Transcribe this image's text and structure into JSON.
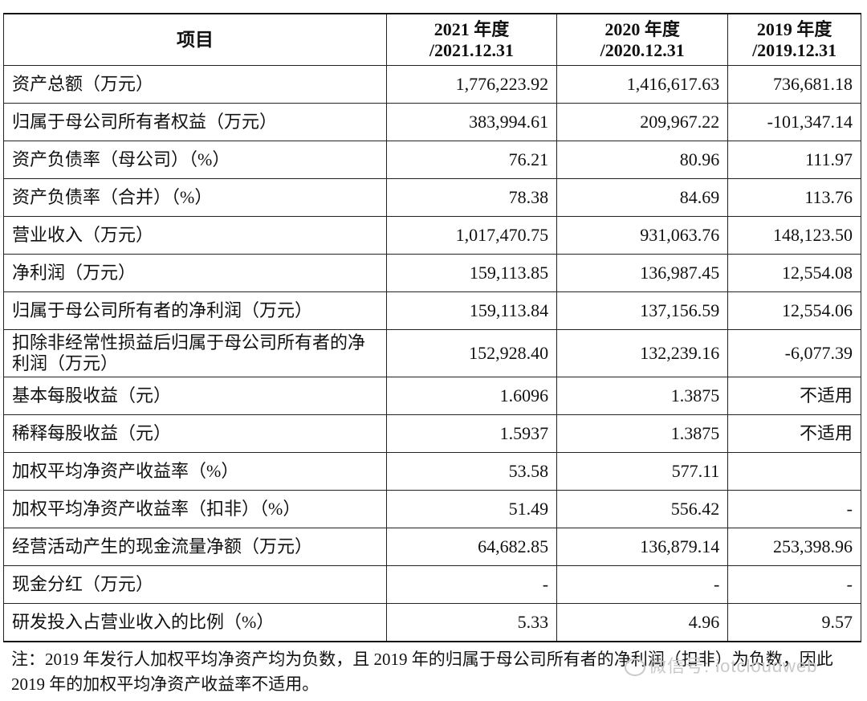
{
  "header": {
    "item": "项目",
    "col2021_year": "2021 年度",
    "col2021_date": "/2021.12.31",
    "col2020_year": "2020 年度",
    "col2020_date": "/2020.12.31",
    "col2019_year": "2019 年度",
    "col2019_date": "/2019.12.31"
  },
  "rows": [
    {
      "label": "资产总额（万元）",
      "v2021": "1,776,223.92",
      "v2020": "1,416,617.63",
      "v2019": "736,681.18"
    },
    {
      "label": "归属于母公司所有者权益（万元）",
      "v2021": "383,994.61",
      "v2020": "209,967.22",
      "v2019": "-101,347.14"
    },
    {
      "label": "资产负债率（母公司）（%）",
      "v2021": "76.21",
      "v2020": "80.96",
      "v2019": "111.97"
    },
    {
      "label": "资产负债率（合并）（%）",
      "v2021": "78.38",
      "v2020": "84.69",
      "v2019": "113.76"
    },
    {
      "label": "营业收入（万元）",
      "v2021": "1,017,470.75",
      "v2020": "931,063.76",
      "v2019": "148,123.50"
    },
    {
      "label": "净利润（万元）",
      "v2021": "159,113.85",
      "v2020": "136,987.45",
      "v2019": "12,554.08"
    },
    {
      "label": "归属于母公司所有者的净利润（万元）",
      "v2021": "159,113.84",
      "v2020": "137,156.59",
      "v2019": "12,554.06"
    },
    {
      "label": "扣除非经常性损益后归属于母公司所有者的净利润（万元）",
      "v2021": "152,928.40",
      "v2020": "132,239.16",
      "v2019": "-6,077.39"
    },
    {
      "label": "基本每股收益（元）",
      "v2021": "1.6096",
      "v2020": "1.3875",
      "v2019": "不适用"
    },
    {
      "label": "稀释每股收益（元）",
      "v2021": "1.5937",
      "v2020": "1.3875",
      "v2019": "不适用"
    },
    {
      "label": "加权平均净资产收益率（%）",
      "v2021": "53.58",
      "v2020": "577.11",
      "v2019": ""
    },
    {
      "label": "加权平均净资产收益率（扣非）（%）",
      "v2021": "51.49",
      "v2020": "556.42",
      "v2019": "-"
    },
    {
      "label": "经营活动产生的现金流量净额（万元）",
      "v2021": "64,682.85",
      "v2020": "136,879.14",
      "v2019": "253,398.96"
    },
    {
      "label": "现金分红（万元）",
      "v2021": "-",
      "v2020": "-",
      "v2019": "-"
    },
    {
      "label": "研发投入占营业收入的比例（%）",
      "v2021": "5.33",
      "v2020": "4.96",
      "v2019": "9.57"
    }
  ],
  "note": "注：2019 年发行人加权平均净资产均为负数，且 2019 年的归属于母公司所有者的净利润（扣非）为负数，因此 2019 年的加权平均净资产收益率不适用。",
  "watermark": "微信号: iotcloudweb"
}
